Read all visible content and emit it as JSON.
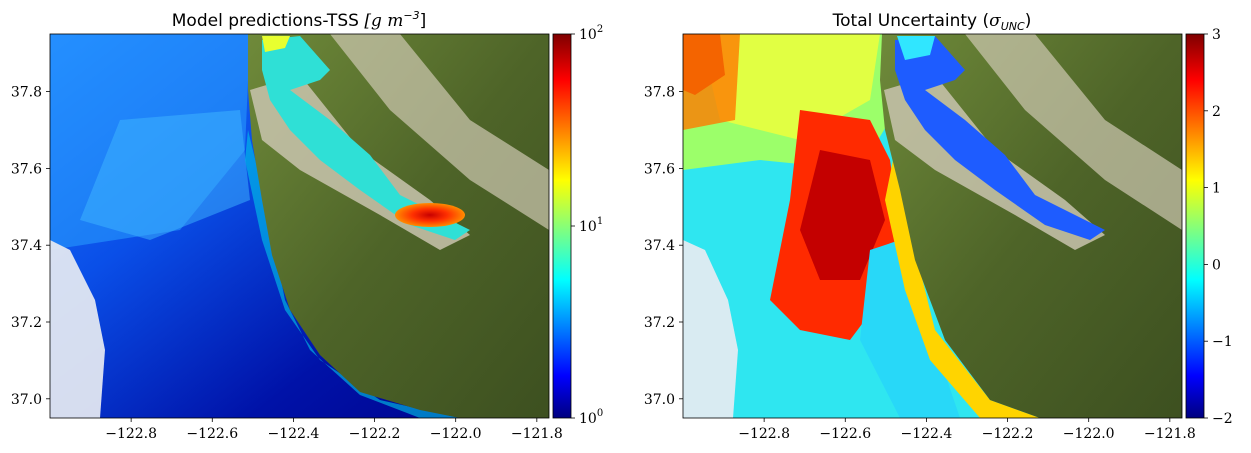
{
  "colors": {
    "land": "#566b2e",
    "urban": "#c9c4ae",
    "cloud": "#e8ecf2",
    "colormap": "jet"
  },
  "chart_data": [
    {
      "type": "heatmap",
      "title": "Model predictions-TSS",
      "title_units": "[g m",
      "title_exp": "−3",
      "title_close": "]",
      "x_ticks": [
        "−122.8",
        "−122.6",
        "−122.4",
        "−122.2",
        "−122.0",
        "−121.8"
      ],
      "x_tick_values": [
        -122.8,
        -122.6,
        -122.4,
        -122.2,
        -122.0,
        -121.8
      ],
      "y_ticks": [
        "37.8",
        "37.6",
        "37.4",
        "37.2",
        "37.0"
      ],
      "y_tick_values": [
        37.8,
        37.6,
        37.4,
        37.2,
        37.0
      ],
      "xlim": [
        -123.0,
        -121.77
      ],
      "ylim": [
        36.95,
        37.95
      ],
      "colorbar": {
        "scale": "log",
        "range": [
          1,
          100
        ],
        "ticks": [
          {
            "base": "10",
            "exp": "0"
          },
          {
            "base": "10",
            "exp": "1"
          },
          {
            "base": "10",
            "exp": "2"
          }
        ],
        "tick_values": [
          1,
          10,
          100
        ]
      }
    },
    {
      "type": "heatmap",
      "title": "Total Uncertainty (",
      "title_sigma": "σ",
      "title_sub": "UNC",
      "title_close": ")",
      "x_ticks": [
        "−122.8",
        "−122.6",
        "−122.4",
        "−122.2",
        "−122.0",
        "−121.8"
      ],
      "x_tick_values": [
        -122.8,
        -122.6,
        -122.4,
        -122.2,
        -122.0,
        -121.8
      ],
      "y_ticks": [
        "37.8",
        "37.6",
        "37.4",
        "37.2",
        "37.0"
      ],
      "y_tick_values": [
        37.8,
        37.6,
        37.4,
        37.2,
        37.0
      ],
      "xlim": [
        -123.0,
        -121.77
      ],
      "ylim": [
        36.95,
        37.95
      ],
      "colorbar": {
        "scale": "linear",
        "range": [
          -2,
          3
        ],
        "ticks": [
          "3",
          "2",
          "1",
          "0",
          "−1",
          "−2"
        ],
        "tick_values": [
          3,
          2,
          1,
          0,
          -1,
          -2
        ]
      }
    }
  ]
}
